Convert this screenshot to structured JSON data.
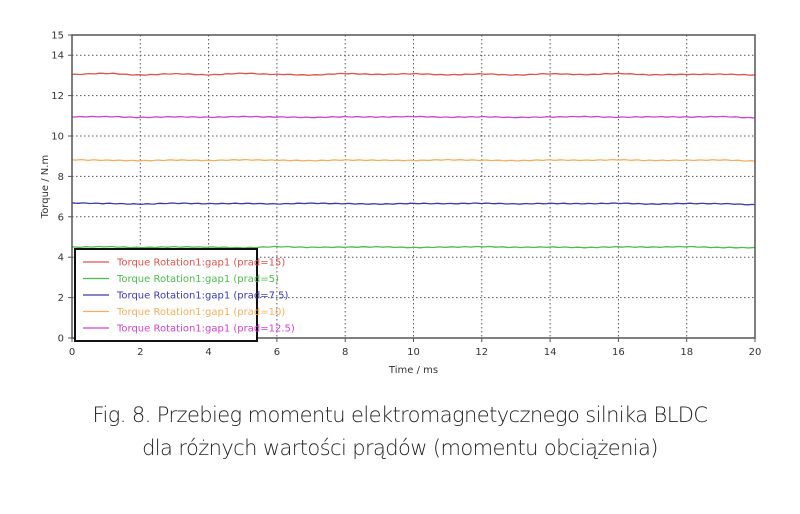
{
  "chart_data": {
    "type": "line",
    "title": "",
    "xlabel": "Time / ms",
    "ylabel": "Torque / N.m",
    "xlim": [
      0,
      20
    ],
    "ylim": [
      0,
      15
    ],
    "xticks": [
      0,
      2,
      4,
      6,
      8,
      10,
      12,
      14,
      16,
      18,
      20
    ],
    "yticks": [
      0,
      2,
      4,
      6,
      8,
      10,
      12,
      14,
      15
    ],
    "grid": true,
    "grid_style": "dotted",
    "legend_position": "lower-left",
    "x": [
      0,
      1,
      2,
      3,
      4,
      5,
      6,
      7,
      8,
      9,
      10,
      11,
      12,
      13,
      14,
      15,
      16,
      17,
      18,
      19,
      20
    ],
    "series": [
      {
        "name": "Torque Rotation1:gap1 (prad=15)",
        "color": "#d9534f",
        "values": [
          13.05,
          13.1,
          13.02,
          13.08,
          13.03,
          13.1,
          13.05,
          13.02,
          13.09,
          13.05,
          13.08,
          13.03,
          13.07,
          13.02,
          13.08,
          13.04,
          13.09,
          13.03,
          13.05,
          13.06,
          13.02
        ]
      },
      {
        "name": "Torque Rotation1:gap1 (prad=5)",
        "color": "#4dbb4d",
        "values": [
          4.5,
          4.52,
          4.48,
          4.51,
          4.5,
          4.47,
          4.52,
          4.49,
          4.5,
          4.51,
          4.48,
          4.5,
          4.52,
          4.49,
          4.5,
          4.48,
          4.51,
          4.5,
          4.52,
          4.48,
          4.47
        ]
      },
      {
        "name": "Torque Rotation1:gap1 (prad=7.5)",
        "color": "#3a3aaa",
        "values": [
          6.68,
          6.66,
          6.63,
          6.67,
          6.65,
          6.66,
          6.64,
          6.67,
          6.65,
          6.63,
          6.66,
          6.65,
          6.67,
          6.64,
          6.66,
          6.65,
          6.67,
          6.63,
          6.66,
          6.65,
          6.6
        ]
      },
      {
        "name": "Torque Rotation1:gap1 (prad=10)",
        "color": "#f0b060",
        "values": [
          8.82,
          8.8,
          8.78,
          8.81,
          8.79,
          8.82,
          8.8,
          8.78,
          8.81,
          8.8,
          8.79,
          8.82,
          8.8,
          8.78,
          8.81,
          8.8,
          8.82,
          8.79,
          8.8,
          8.81,
          8.76
        ]
      },
      {
        "name": "Torque Rotation1:gap1 (prad=12.5)",
        "color": "#cc44cc",
        "values": [
          10.95,
          10.96,
          10.92,
          10.95,
          10.93,
          10.96,
          10.94,
          10.92,
          10.95,
          10.94,
          10.96,
          10.93,
          10.95,
          10.92,
          10.94,
          10.96,
          10.93,
          10.95,
          10.94,
          10.96,
          10.9
        ]
      }
    ]
  },
  "caption": {
    "line1": "Fig. 8. Przebieg momentu elektromagnetycznego silnika BLDC",
    "line2": "dla różnych wartości prądów (momentu obciążenia)"
  }
}
